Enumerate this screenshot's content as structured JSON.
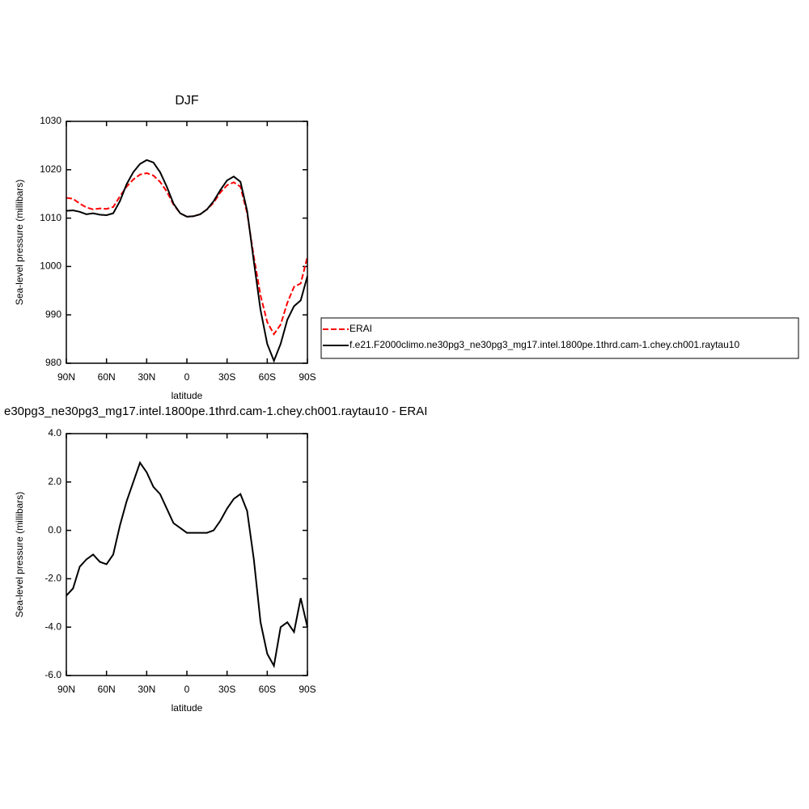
{
  "chart_data": [
    {
      "type": "line",
      "title": "DJF",
      "xlabel": "latitude",
      "ylabel": "Sea-level pressure (millibars)",
      "x": [
        90,
        85,
        80,
        75,
        70,
        65,
        60,
        55,
        50,
        45,
        40,
        35,
        30,
        25,
        20,
        15,
        10,
        5,
        0,
        -5,
        -10,
        -15,
        -20,
        -25,
        -30,
        -35,
        -40,
        -45,
        -50,
        -55,
        -60,
        -65,
        -70,
        -75,
        -80,
        -85,
        -90
      ],
      "series": [
        {
          "name": "ERAI",
          "color": "#ff0000",
          "line_style": "dashed",
          "values": [
            1014.2,
            1014.0,
            1013.0,
            1012.2,
            1011.8,
            1012.0,
            1011.9,
            1012.3,
            1014.5,
            1016.5,
            1018.0,
            1019.0,
            1019.3,
            1018.8,
            1017.5,
            1015.5,
            1012.8,
            1011.0,
            1010.3,
            1010.4,
            1010.8,
            1011.8,
            1013.2,
            1015.3,
            1016.8,
            1017.4,
            1016.5,
            1011.0,
            1002.0,
            994.0,
            988.5,
            986.0,
            988.0,
            992.5,
            995.8,
            996.5,
            1002.0
          ]
        },
        {
          "name": "f.e21.F2000climo.ne30pg3_ne30pg3_mg17.intel.1800pe.1thrd.cam-1.chey.ch001.raytau10",
          "color": "#000000",
          "line_style": "solid",
          "values": [
            1011.5,
            1011.6,
            1011.3,
            1010.8,
            1011.0,
            1010.7,
            1010.6,
            1011.0,
            1013.5,
            1017.0,
            1019.5,
            1021.2,
            1022.0,
            1021.5,
            1019.5,
            1016.5,
            1013.0,
            1011.0,
            1010.3,
            1010.4,
            1010.8,
            1011.8,
            1013.5,
            1015.8,
            1017.8,
            1018.6,
            1017.5,
            1011.5,
            1001.0,
            991.0,
            984.0,
            980.5,
            984.0,
            989.0,
            991.8,
            993.0,
            998.0
          ]
        }
      ],
      "xlim": [
        90,
        -90
      ],
      "xticks": [
        {
          "value": 90,
          "label": "90N"
        },
        {
          "value": 60,
          "label": "60N"
        },
        {
          "value": 30,
          "label": "30N"
        },
        0,
        {
          "value": -30,
          "label": "30S"
        },
        {
          "value": -60,
          "label": "60S"
        },
        {
          "value": -90,
          "label": "90S"
        }
      ],
      "ylim": [
        980,
        1030
      ],
      "yticks": [
        980,
        990,
        1000,
        1010,
        1020,
        1030
      ]
    },
    {
      "type": "line",
      "title": "e30pg3_ne30pg3_mg17.intel.1800pe.1thrd.cam-1.chey.ch001.raytau10 - ERAI",
      "xlabel": "latitude",
      "ylabel": "Sea-level pressure (millibars)",
      "x": [
        90,
        85,
        80,
        75,
        70,
        65,
        60,
        55,
        50,
        45,
        40,
        35,
        30,
        25,
        20,
        15,
        10,
        5,
        0,
        -5,
        -10,
        -15,
        -20,
        -25,
        -30,
        -35,
        -40,
        -45,
        -50,
        -55,
        -60,
        -65,
        -70,
        -75,
        -80,
        -85,
        -90
      ],
      "series": [
        {
          "color": "#000000",
          "line_style": "solid",
          "values": [
            -2.7,
            -2.4,
            -1.5,
            -1.2,
            -1.0,
            -1.3,
            -1.4,
            -1.0,
            0.2,
            1.2,
            2.0,
            2.8,
            2.4,
            1.8,
            1.5,
            0.9,
            0.3,
            0.1,
            -0.1,
            -0.1,
            -0.1,
            -0.1,
            0.0,
            0.4,
            0.9,
            1.3,
            1.5,
            0.8,
            -1.2,
            -3.8,
            -5.1,
            -5.6,
            -4.0,
            -3.8,
            -4.2,
            -2.8,
            -4.0
          ]
        }
      ],
      "xlim": [
        90,
        -90
      ],
      "xticks": [
        {
          "value": 90,
          "label": "90N"
        },
        {
          "value": 60,
          "label": "60N"
        },
        {
          "value": 30,
          "label": "30N"
        },
        0,
        {
          "value": -30,
          "label": "30S"
        },
        {
          "value": -60,
          "label": "60S"
        },
        {
          "value": -90,
          "label": "90S"
        }
      ],
      "ylim": [
        -6,
        4
      ],
      "yticks": [
        {
          "value": -6,
          "label": "-6.0"
        },
        {
          "value": -4,
          "label": "-4.0"
        },
        {
          "value": -2,
          "label": "-2.0"
        },
        {
          "value": 0,
          "label": "0.0"
        },
        {
          "value": 2,
          "label": "2.0"
        },
        {
          "value": 4,
          "label": "4.0"
        }
      ]
    }
  ]
}
